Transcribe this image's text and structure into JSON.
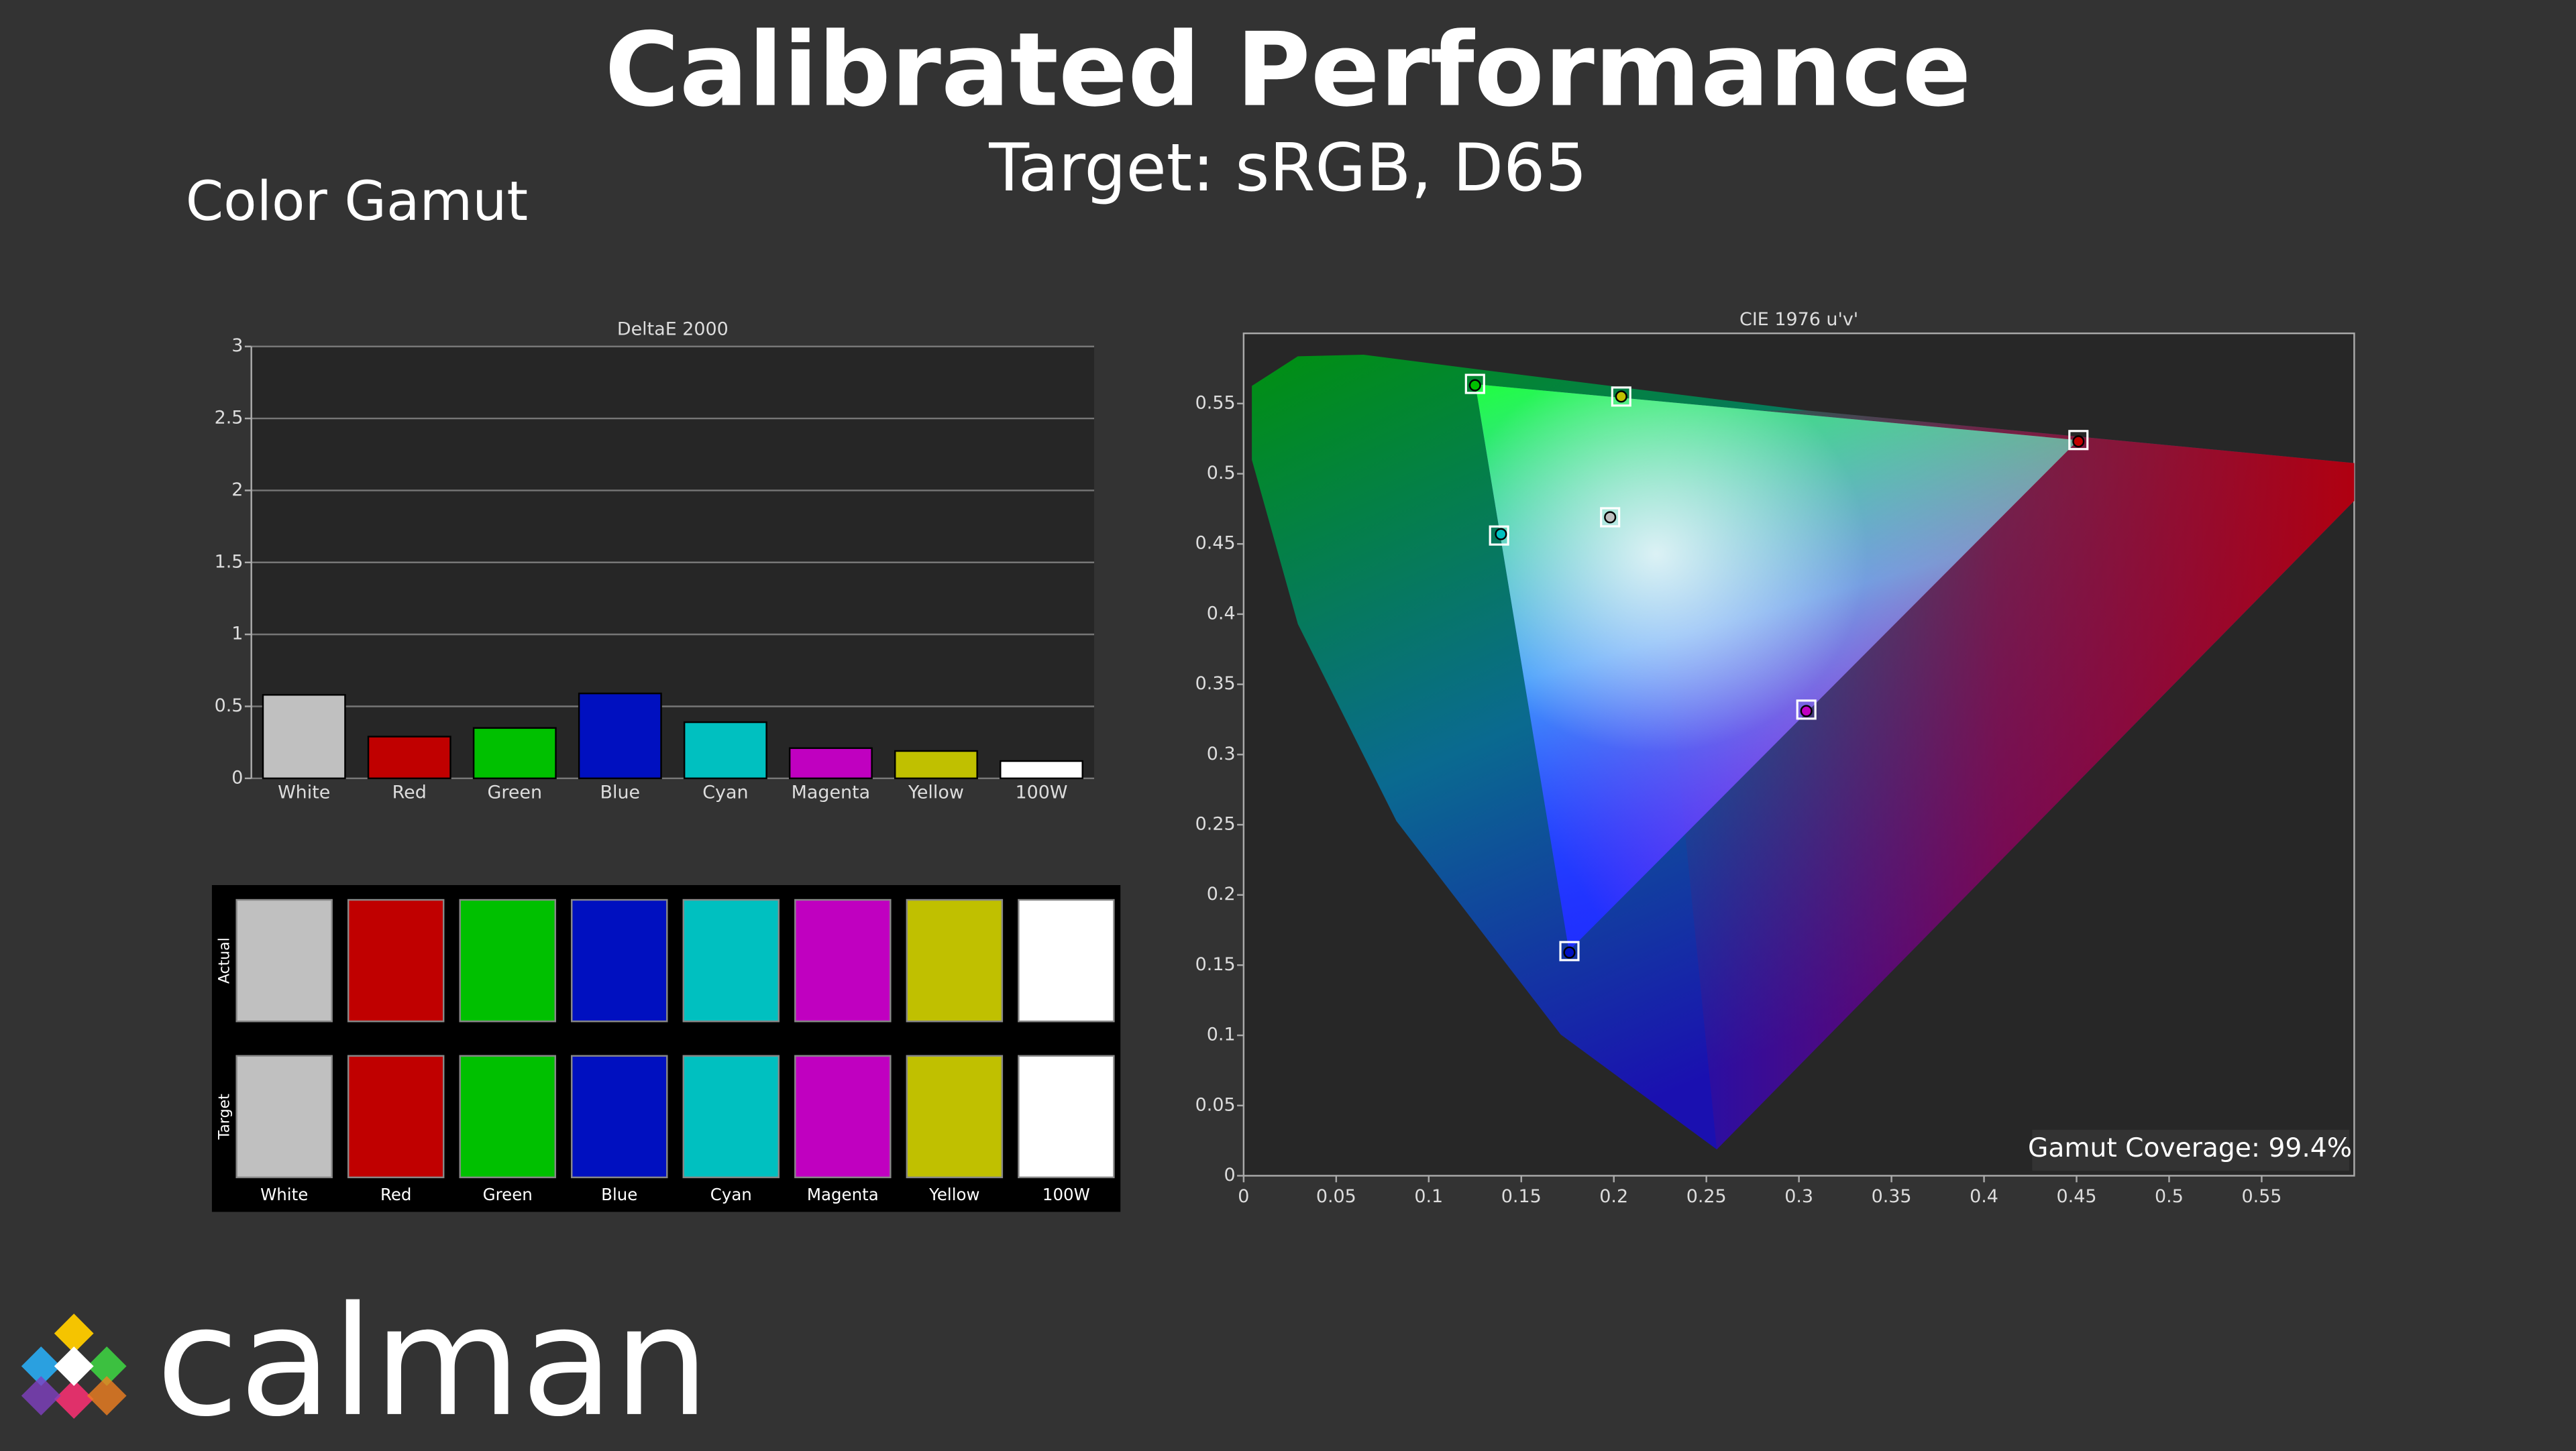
{
  "header": {
    "title": "Calibrated Performance",
    "subtitle": "Target: sRGB, D65",
    "section": "Color Gamut"
  },
  "chart_data": [
    {
      "type": "bar",
      "title": "DeltaE 2000",
      "categories": [
        "White",
        "Red",
        "Green",
        "Blue",
        "Cyan",
        "Magenta",
        "Yellow",
        "100W"
      ],
      "values": [
        0.58,
        0.29,
        0.35,
        0.59,
        0.39,
        0.21,
        0.19,
        0.12
      ],
      "colors": [
        "#c0c0c0",
        "#c00000",
        "#00c000",
        "#0010c0",
        "#00c0c0",
        "#c000c0",
        "#c0c000",
        "#ffffff"
      ],
      "ylim": [
        0,
        3
      ],
      "yticks": [
        0,
        0.5,
        1,
        1.5,
        2,
        2.5,
        3
      ],
      "grid": true
    },
    {
      "type": "scatter",
      "title": "CIE 1976 u'v'",
      "annotation": "Gamut Coverage:  99.4%",
      "xlim": [
        0,
        0.6
      ],
      "ylim": [
        0,
        0.6
      ],
      "xticks": [
        0,
        0.05,
        0.1,
        0.15,
        0.2,
        0.25,
        0.3,
        0.35,
        0.4,
        0.45,
        0.5,
        0.55
      ],
      "yticks": [
        0,
        0.05,
        0.1,
        0.15,
        0.2,
        0.25,
        0.3,
        0.35,
        0.4,
        0.45,
        0.5,
        0.55
      ],
      "series": [
        {
          "marker": "square",
          "color": "#ffffff",
          "x": [
            0.198,
            0.451,
            0.125,
            0.176,
            0.138,
            0.304,
            0.204
          ],
          "values": [
            0.469,
            0.524,
            0.564,
            0.16,
            0.456,
            0.332,
            0.555
          ]
        },
        {
          "marker": "circle",
          "color": "#000000",
          "colors": [
            "#c0c0c0",
            "#c00000",
            "#00c000",
            "#0010c0",
            "#00c0c0",
            "#c000c0",
            "#c0c000"
          ],
          "x": [
            0.198,
            0.451,
            0.125,
            0.176,
            0.139,
            0.304,
            0.204
          ],
          "values": [
            0.469,
            0.523,
            0.563,
            0.159,
            0.457,
            0.331,
            0.555
          ]
        }
      ]
    }
  ],
  "swatches": {
    "rows": [
      "Actual",
      "Target"
    ],
    "labels": [
      "White",
      "Red",
      "Green",
      "Blue",
      "Cyan",
      "Magenta",
      "Yellow",
      "100W"
    ],
    "actual_colors": [
      "#c0c0c0",
      "#c00000",
      "#00c000",
      "#0010c0",
      "#00c0c0",
      "#c000c0",
      "#c0c000",
      "#ffffff"
    ],
    "target_colors": [
      "#c0c0c0",
      "#c00000",
      "#00c000",
      "#0010c0",
      "#00c0c0",
      "#c000c0",
      "#c0c000",
      "#ffffff"
    ]
  },
  "logo": "calman"
}
